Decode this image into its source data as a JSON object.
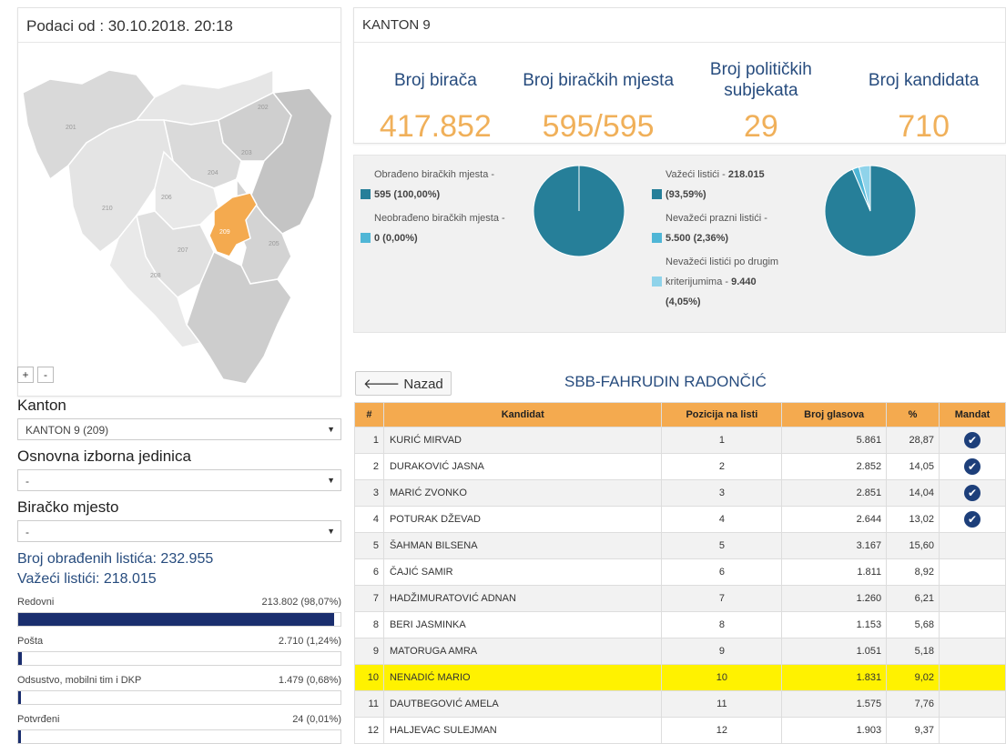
{
  "left": {
    "header": "Podaci od : 30.10.2018. 20:18",
    "map_labels": [
      "201",
      "202",
      "203",
      "204",
      "205",
      "206",
      "207",
      "208",
      "209",
      "210"
    ],
    "zoom_in": "+",
    "zoom_out": "-",
    "kanton_label": "Kanton",
    "kanton_value": "KANTON 9 (209)",
    "oij_label": "Osnovna izborna jedinica",
    "oij_value": "-",
    "bm_label": "Biračko mjesto",
    "bm_value": "-",
    "obradjeni": "Broj obrađenih listića: 232.955",
    "vazeci": "Važeći listići: 218.015",
    "bars": [
      {
        "label": "Redovni",
        "value": "213.802 (98,07%)",
        "fraction": 0.9807
      },
      {
        "label": "Pošta",
        "value": "2.710 (1,24%)",
        "fraction": 0.0124
      },
      {
        "label": "Odsustvo, mobilni tim i DKP",
        "value": "1.479 (0,68%)",
        "fraction": 0.0068
      },
      {
        "label": "Potvrđeni",
        "value": "24 (0,01%)",
        "fraction": 0.0001
      }
    ]
  },
  "right": {
    "header": "KANTON 9",
    "stats": [
      {
        "label": "Broj birača",
        "value": "417.852"
      },
      {
        "label": "Broj biračkih mjesta",
        "value": "595/595"
      },
      {
        "label": "Broj političkih subjekata",
        "value": "29"
      },
      {
        "label": "Broj kandidata",
        "value": "710"
      }
    ],
    "legend1": [
      {
        "text": "Obrađeno biračkih mjesta -",
        "value": "595 (100,00%)",
        "color": "#267f99"
      },
      {
        "text": "Neobrađeno biračkih mjesta -",
        "value": "0 (0,00%)",
        "color": "#4fb6d6"
      }
    ],
    "legend2": [
      {
        "text": "Važeći listići -",
        "value": "218.015",
        "value2": "(93,59%)",
        "color": "#267f99"
      },
      {
        "text": "Nevažeći prazni listići -",
        "value": "5.500 (2,36%)",
        "color": "#4fb6d6"
      },
      {
        "text": "Nevažeći listići po drugim",
        "text2": "kriterijumima -",
        "value": "9.440",
        "value2": "(4,05%)",
        "color": "#8fd3ea"
      }
    ],
    "pie1": [
      {
        "fraction": 1.0,
        "color": "#267f99"
      },
      {
        "fraction": 0.0,
        "color": "#4fb6d6"
      }
    ],
    "pie2": [
      {
        "fraction": 0.9359,
        "color": "#267f99"
      },
      {
        "fraction": 0.0236,
        "color": "#4fb6d6"
      },
      {
        "fraction": 0.0405,
        "color": "#8fd3ea"
      }
    ],
    "back_label": "Nazad",
    "party": "SBB-FAHRUDIN RADONČIĆ",
    "columns": [
      "#",
      "Kandidat",
      "Pozicija na listi",
      "Broj glasova",
      "%",
      "Mandat"
    ],
    "rows": [
      {
        "n": "1",
        "name": "KURIĆ MIRVAD",
        "pos": "1",
        "votes": "5.861",
        "pct": "28,87",
        "mandat": true
      },
      {
        "n": "2",
        "name": "DURAKOVIĆ JASNA",
        "pos": "2",
        "votes": "2.852",
        "pct": "14,05",
        "mandat": true
      },
      {
        "n": "3",
        "name": "MARIĆ ZVONKO",
        "pos": "3",
        "votes": "2.851",
        "pct": "14,04",
        "mandat": true
      },
      {
        "n": "4",
        "name": "POTURAK DŽEVAD",
        "pos": "4",
        "votes": "2.644",
        "pct": "13,02",
        "mandat": true
      },
      {
        "n": "5",
        "name": "ŠAHMAN BILSENA",
        "pos": "5",
        "votes": "3.167",
        "pct": "15,60",
        "mandat": false
      },
      {
        "n": "6",
        "name": "ČAJIĆ SAMIR",
        "pos": "6",
        "votes": "1.811",
        "pct": "8,92",
        "mandat": false
      },
      {
        "n": "7",
        "name": "HADŽIMURATOVIĆ ADNAN",
        "pos": "7",
        "votes": "1.260",
        "pct": "6,21",
        "mandat": false
      },
      {
        "n": "8",
        "name": "BERI JASMINKA",
        "pos": "8",
        "votes": "1.153",
        "pct": "5,68",
        "mandat": false
      },
      {
        "n": "9",
        "name": "MATORUGA AMRA",
        "pos": "9",
        "votes": "1.051",
        "pct": "5,18",
        "mandat": false
      },
      {
        "n": "10",
        "name": "NENADIĆ MARIO",
        "pos": "10",
        "votes": "1.831",
        "pct": "9,02",
        "mandat": false,
        "highlight": true
      },
      {
        "n": "11",
        "name": "DAUTBEGOVIĆ AMELA",
        "pos": "11",
        "votes": "1.575",
        "pct": "7,76",
        "mandat": false
      },
      {
        "n": "12",
        "name": "HALJEVAC SULEJMAN",
        "pos": "12",
        "votes": "1.903",
        "pct": "9,37",
        "mandat": false
      }
    ],
    "colors": {
      "accent": "#f0b05a",
      "header_bg": "#f4aa4f",
      "highlight": "#fff200",
      "title": "#274c7e"
    }
  }
}
